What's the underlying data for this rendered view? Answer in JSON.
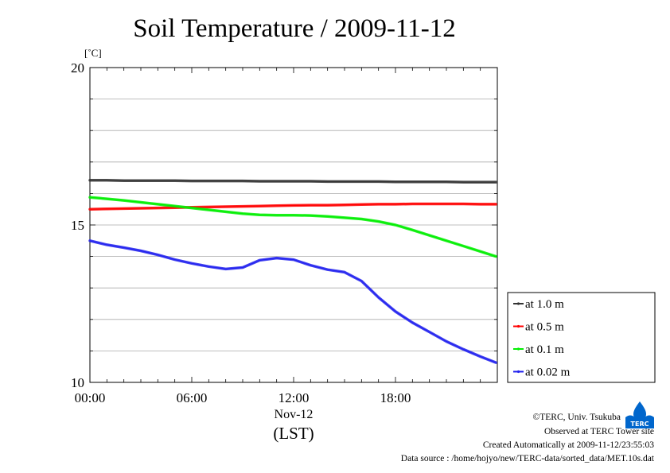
{
  "chart_data": {
    "type": "line",
    "title": "Soil Temperature / 2009-11-12",
    "ylabel": "[˚C]",
    "xlabel": "(LST)",
    "x_date_label": "Nov-12",
    "ylim": [
      10,
      20
    ],
    "xlim": [
      "2009-11-12 00:00",
      "2009-11-12 24:00"
    ],
    "x_ticks": [
      "00:00",
      "06:00",
      "12:00",
      "18:00"
    ],
    "y_ticks": [
      "10",
      "15",
      "20"
    ],
    "grid": true,
    "legend_position": "right",
    "x": [
      "00:00",
      "01:00",
      "02:00",
      "03:00",
      "04:00",
      "05:00",
      "06:00",
      "07:00",
      "08:00",
      "09:00",
      "10:00",
      "11:00",
      "12:00",
      "13:00",
      "14:00",
      "15:00",
      "16:00",
      "17:00",
      "18:00",
      "19:00",
      "20:00",
      "21:00",
      "22:00",
      "23:00",
      "23:55"
    ],
    "series": [
      {
        "name": "at 1.0 m",
        "color": "#333333",
        "values": [
          16.42,
          16.42,
          16.41,
          16.41,
          16.41,
          16.41,
          16.4,
          16.4,
          16.4,
          16.4,
          16.39,
          16.39,
          16.39,
          16.39,
          16.38,
          16.38,
          16.38,
          16.38,
          16.37,
          16.37,
          16.37,
          16.37,
          16.36,
          16.36,
          16.36
        ]
      },
      {
        "name": "at 0.5 m",
        "color": "#ff0000",
        "values": [
          15.5,
          15.51,
          15.52,
          15.53,
          15.54,
          15.55,
          15.56,
          15.57,
          15.58,
          15.59,
          15.6,
          15.61,
          15.62,
          15.63,
          15.63,
          15.64,
          15.65,
          15.66,
          15.66,
          15.67,
          15.67,
          15.67,
          15.67,
          15.66,
          15.66
        ]
      },
      {
        "name": "at 0.1 m",
        "color": "#00ee00",
        "values": [
          15.88,
          15.83,
          15.78,
          15.72,
          15.66,
          15.6,
          15.54,
          15.48,
          15.42,
          15.36,
          15.32,
          15.31,
          15.31,
          15.3,
          15.27,
          15.23,
          15.19,
          15.11,
          15.0,
          14.84,
          14.67,
          14.5,
          14.33,
          14.16,
          14.0
        ]
      },
      {
        "name": "at 0.02 m",
        "color": "#2222ee",
        "values": [
          14.5,
          14.37,
          14.28,
          14.18,
          14.05,
          13.9,
          13.78,
          13.68,
          13.6,
          13.65,
          13.88,
          13.95,
          13.9,
          13.72,
          13.58,
          13.5,
          13.22,
          12.7,
          12.25,
          11.9,
          11.6,
          11.3,
          11.05,
          10.82,
          10.63
        ]
      }
    ]
  },
  "footer": {
    "copyright": "©TERC, Univ. Tsukuba",
    "observed": "Observed at TERC Tower site",
    "created": "Created Automatically at 2009-11-12/23:55:03",
    "source": "Data source : /home/hojyo/new/TERC-data/sorted_data/MET.10s.dat"
  },
  "logo": {
    "label": "TERC",
    "color": "#0066cc"
  }
}
